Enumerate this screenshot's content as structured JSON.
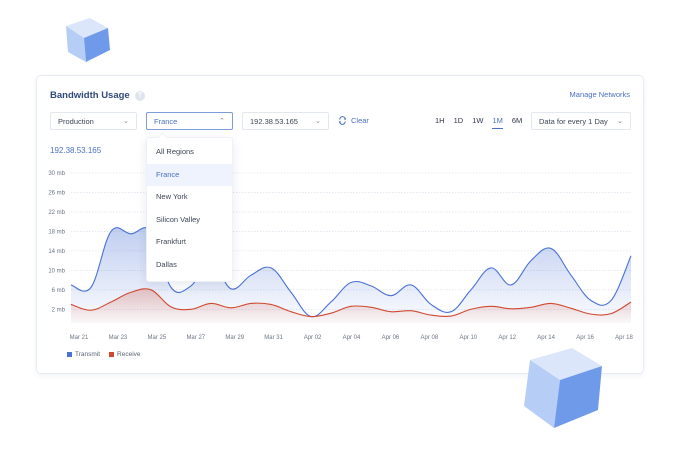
{
  "header": {
    "title": "Bandwidth Usage",
    "help_icon": "?",
    "manage_link": "Manage Networks"
  },
  "filters": {
    "environment": "Production",
    "region": "France",
    "ip": "192.38.53.165",
    "clear": "Clear",
    "interval": "Data for every 1 Day",
    "chevron_down": "⌄",
    "chevron_up": "⌃"
  },
  "region_dropdown": {
    "options": [
      "All Regions",
      "France",
      "New York",
      "Silicon Valley",
      "Frankfurt",
      "Dallas"
    ],
    "selected": "France"
  },
  "ranges": [
    {
      "label": "1H",
      "active": false
    },
    {
      "label": "1D",
      "active": false
    },
    {
      "label": "1W",
      "active": false
    },
    {
      "label": "1M",
      "active": true
    },
    {
      "label": "6M",
      "active": false
    }
  ],
  "chart_heading": "192.38.53.165",
  "colors": {
    "transmit": "#4a72d6",
    "receive": "#d0492f",
    "accent": "#4a70c4"
  },
  "chart_data": {
    "type": "area",
    "title": "Bandwidth Usage",
    "xlabel": "",
    "ylabel": "",
    "y_ticks": [
      "30 mb",
      "26 mb",
      "22 mb",
      "18 mb",
      "14 mb",
      "10 mb",
      "6 mb",
      "2 mb"
    ],
    "ylim": [
      0,
      30
    ],
    "grid": true,
    "legend_position": "bottom-left",
    "x_tick_labels": [
      "Mar 21",
      "Mar 23",
      "Mar 25",
      "Mar 27",
      "Mar 29",
      "Mar 31",
      "Apr 02",
      "Apr 04",
      "Apr 06",
      "Apr 08",
      "Apr 10",
      "Apr 12",
      "Apr 14",
      "Apr 16",
      "Apr 18"
    ],
    "x": [
      "Mar 21",
      "Mar 22",
      "Mar 23",
      "Mar 24",
      "Mar 25",
      "Mar 26",
      "Mar 27",
      "Mar 28",
      "Mar 29",
      "Mar 30",
      "Mar 31",
      "Apr 01",
      "Apr 02",
      "Apr 03",
      "Apr 04",
      "Apr 05",
      "Apr 06",
      "Apr 07",
      "Apr 08",
      "Apr 09",
      "Apr 10",
      "Apr 11",
      "Apr 12",
      "Apr 13",
      "Apr 14",
      "Apr 15",
      "Apr 16",
      "Apr 17",
      "Apr 18"
    ],
    "series": [
      {
        "name": "Transmit",
        "values": [
          7,
          6.5,
          18,
          17.5,
          18,
          6.5,
          6.8,
          12,
          6.2,
          9,
          10.5,
          5.5,
          0.5,
          3.5,
          7.5,
          6.8,
          4.8,
          7,
          3,
          1.5,
          6,
          10.5,
          7,
          12,
          14.5,
          9,
          3.8,
          3.8,
          13
        ]
      },
      {
        "name": "Receive",
        "values": [
          3,
          1.8,
          3.5,
          5.5,
          6,
          2.5,
          2,
          3.2,
          2.3,
          3.2,
          3,
          1.5,
          0.5,
          1.2,
          2.6,
          2.4,
          1.5,
          1.7,
          0.8,
          0.6,
          2,
          2.6,
          2.1,
          2.4,
          3.2,
          2.2,
          1,
          1.1,
          3.5
        ]
      }
    ]
  }
}
